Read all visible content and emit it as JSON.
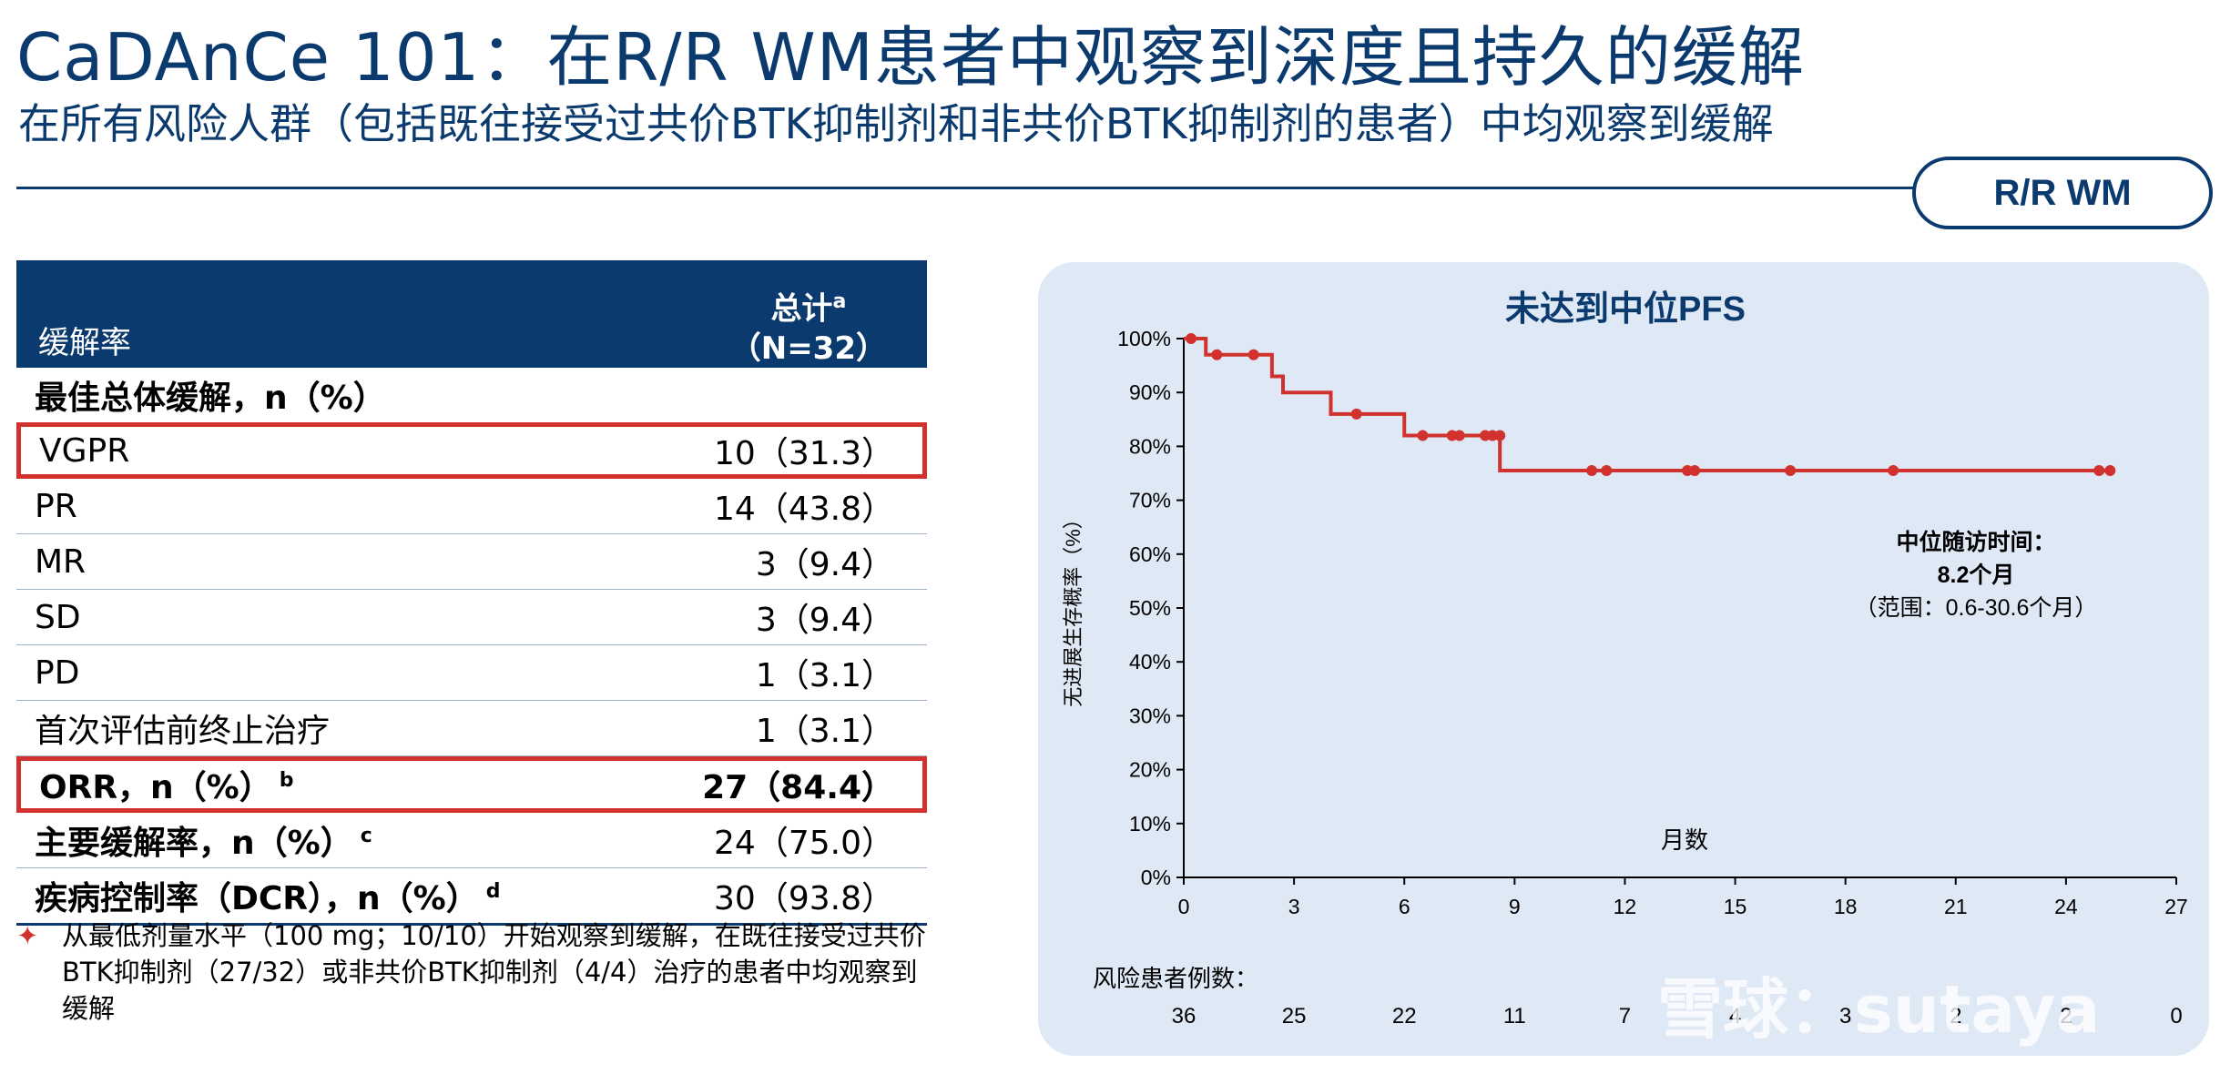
{
  "header": {
    "title": "CaDAnCe 101：在R/R WM患者中观察到深度且持久的缓解",
    "subtitle": "在所有风险人群（包括既往接受过共价BTK抑制剂和非共价BTK抑制剂的患者）中均观察到缓解",
    "badge": "R/R WM"
  },
  "table": {
    "col1_header": "缓解率",
    "col2_header_line1": "总计",
    "col2_header_sup": "a",
    "col2_header_line2": "（N=32）",
    "section_label": "最佳总体缓解，n（%）",
    "rows": [
      {
        "label": "VGPR",
        "value": "10（31.3）",
        "sup": ""
      },
      {
        "label": "PR",
        "value": "14（43.8）",
        "sup": ""
      },
      {
        "label": "MR",
        "value": "3（9.4）",
        "sup": ""
      },
      {
        "label": "SD",
        "value": "3（9.4）",
        "sup": ""
      },
      {
        "label": "PD",
        "value": "1（3.1）",
        "sup": ""
      },
      {
        "label": "首次评估前终止治疗",
        "value": "1（3.1）",
        "sup": ""
      },
      {
        "label": "ORR，n（%）",
        "value": "27（84.4）",
        "sup": "b"
      },
      {
        "label": "主要缓解率，n（%）",
        "value": "24（75.0）",
        "sup": "c"
      },
      {
        "label": "疾病控制率（DCR），n（%）",
        "value": "30（93.8）",
        "sup": "d"
      }
    ]
  },
  "footnote": {
    "bullet": "✦",
    "text": "从最低剂量水平（100 mg；10/10）开始观察到缓解，在既往接受过共价BTK抑制剂（27/32）或非共价BTK抑制剂（4/4）治疗的患者中均观察到缓解"
  },
  "chart_data": {
    "type": "line",
    "title": "未达到中位PFS",
    "xlabel": "月数",
    "ylabel": "无进展生存概率（%）",
    "xlim": [
      0,
      27
    ],
    "ylim": [
      0,
      100
    ],
    "x_ticks": [
      0,
      3,
      6,
      9,
      12,
      15,
      18,
      21,
      24,
      27
    ],
    "y_ticks": [
      0,
      10,
      20,
      30,
      40,
      50,
      60,
      70,
      80,
      90,
      100
    ],
    "y_tick_labels": [
      "0%",
      "10%",
      "20%",
      "30%",
      "40%",
      "50%",
      "60%",
      "70%",
      "80%",
      "90%",
      "100%"
    ],
    "color": "#d2322d",
    "step_x": [
      0,
      0.6,
      2.4,
      2.7,
      4.0,
      6.0,
      8.6,
      25.3
    ],
    "step_y": [
      100,
      97,
      93,
      90,
      86,
      82,
      75.5,
      75.5
    ],
    "censor_x": [
      0.2,
      0.9,
      1.9,
      4.7,
      6.5,
      7.3,
      7.5,
      8.2,
      8.4,
      8.6,
      11.1,
      11.5,
      13.7,
      13.9,
      16.5,
      19.3,
      24.9,
      25.2
    ],
    "censor_y": [
      100,
      97,
      97,
      86,
      82,
      82,
      82,
      82,
      82,
      82,
      75.5,
      75.5,
      75.5,
      75.5,
      75.5,
      75.5,
      75.5,
      75.5
    ],
    "annotation": {
      "line1": "中位随访时间：",
      "line2": "8.2个月",
      "line3": "（范围：0.6-30.6个月）"
    },
    "risk_table": {
      "label": "风险患者例数：",
      "months": [
        0,
        3,
        6,
        9,
        12,
        15,
        18,
        21,
        24,
        27
      ],
      "counts": [
        "36",
        "25",
        "22",
        "11",
        "7",
        "4",
        "3",
        "2",
        "2",
        "0"
      ]
    }
  },
  "watermark": "雪球：sutaya"
}
